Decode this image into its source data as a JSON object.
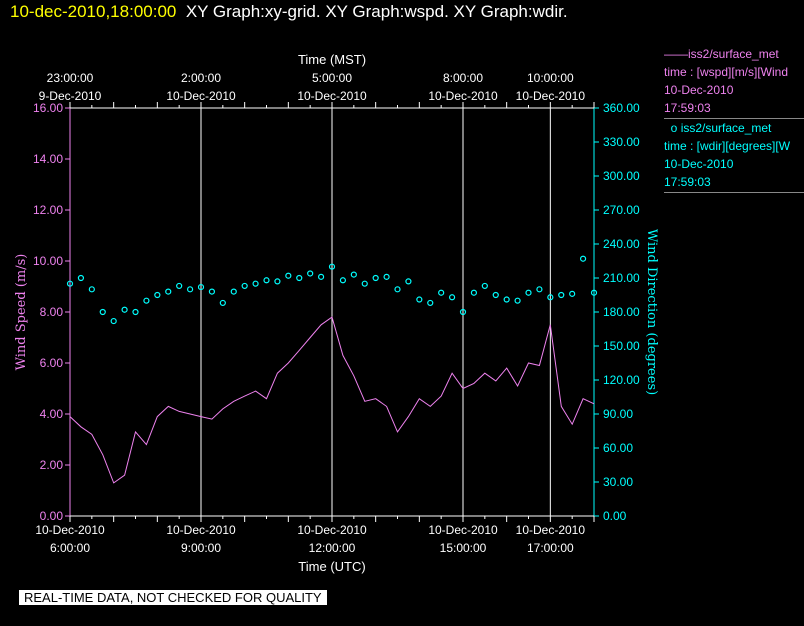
{
  "header": {
    "timestamp": "10-dec-2010,18:00:00",
    "graphs": "XY Graph:xy-grid.  XY Graph:wspd.  XY Graph:wdir."
  },
  "legend": [
    {
      "line1": "iss2/surface_met",
      "line2": "time : [wspd][m/s][Wind",
      "line3": "10-Dec-2010",
      "line4": "17:59:03"
    },
    {
      "line1": "iss2/surface_met",
      "line2": "time : [wdir][degrees][W",
      "line3": "10-Dec-2010",
      "line4": "17:59:03"
    }
  ],
  "footer": "REAL-TIME DATA, NOT CHECKED FOR QUALITY",
  "chart_data": {
    "type": "line",
    "colors": {
      "wspd": "#ee82ee",
      "wdir": "#00ffff",
      "grid": "#ffffff",
      "background": "#000000"
    },
    "x_bottom": {
      "label": "Time (UTC)",
      "ticks": [
        {
          "hour": 6,
          "line1": "10-Dec-2010",
          "line2": "6:00:00"
        },
        {
          "hour": 9,
          "line1": "10-Dec-2010",
          "line2": "9:00:00"
        },
        {
          "hour": 12,
          "line1": "10-Dec-2010",
          "line2": "12:00:00"
        },
        {
          "hour": 15,
          "line1": "10-Dec-2010",
          "line2": "15:00:00"
        },
        {
          "hour": 17,
          "line1": "10-Dec-2010",
          "line2": "17:00:00"
        }
      ]
    },
    "x_top": {
      "label": "Time (MST)",
      "ticks": [
        {
          "hour": 6,
          "line1": "23:00:00",
          "line2": "9-Dec-2010"
        },
        {
          "hour": 9,
          "line1": "2:00:00",
          "line2": "10-Dec-2010"
        },
        {
          "hour": 12,
          "line1": "5:00:00",
          "line2": "10-Dec-2010"
        },
        {
          "hour": 15,
          "line1": "8:00:00",
          "line2": "10-Dec-2010"
        },
        {
          "hour": 17,
          "line1": "10:00:00",
          "line2": "10-Dec-2010"
        }
      ]
    },
    "xlim_hours_utc": [
      6,
      18
    ],
    "y_left": {
      "label": "Wind Speed (m/s)",
      "lim": [
        0,
        16
      ],
      "ticks": [
        "0.00",
        "2.00",
        "4.00",
        "6.00",
        "8.00",
        "10.00",
        "12.00",
        "14.00",
        "16.00"
      ]
    },
    "y_right": {
      "label": "Wind Direction (degrees)",
      "lim": [
        0,
        360
      ],
      "ticks": [
        "0.00",
        "30.00",
        "60.00",
        "90.00",
        "120.00",
        "150.00",
        "180.00",
        "210.00",
        "240.00",
        "270.00",
        "300.00",
        "330.00",
        "360.00"
      ]
    },
    "grid": true,
    "series": [
      {
        "key": "wspd",
        "style": "line",
        "hours_utc": [
          6.0,
          6.25,
          6.5,
          6.75,
          7.0,
          7.25,
          7.5,
          7.75,
          8.0,
          8.25,
          8.5,
          8.75,
          9.0,
          9.25,
          9.5,
          9.75,
          10.0,
          10.25,
          10.5,
          10.75,
          11.0,
          11.25,
          11.5,
          11.75,
          12.0,
          12.25,
          12.5,
          12.75,
          13.0,
          13.25,
          13.5,
          13.75,
          14.0,
          14.25,
          14.5,
          14.75,
          15.0,
          15.25,
          15.5,
          15.75,
          16.0,
          16.25,
          16.5,
          16.75,
          17.0,
          17.25,
          17.5,
          17.75,
          18.0
        ],
        "values": [
          3.9,
          3.5,
          3.2,
          2.4,
          1.3,
          1.6,
          3.3,
          2.8,
          3.9,
          4.3,
          4.1,
          4.0,
          3.9,
          3.8,
          4.2,
          4.5,
          4.7,
          4.9,
          4.6,
          5.6,
          6.0,
          6.5,
          7.0,
          7.5,
          7.8,
          6.3,
          5.5,
          4.5,
          4.6,
          4.3,
          3.3,
          3.9,
          4.6,
          4.3,
          4.7,
          5.6,
          5.0,
          5.2,
          5.6,
          5.3,
          5.8,
          5.1,
          6.0,
          5.9,
          7.5,
          4.3,
          3.6,
          4.6,
          4.4
        ]
      },
      {
        "key": "wdir",
        "style": "circles",
        "hours_utc": [
          6.0,
          6.25,
          6.5,
          6.75,
          7.0,
          7.25,
          7.5,
          7.75,
          8.0,
          8.25,
          8.5,
          8.75,
          9.0,
          9.25,
          9.5,
          9.75,
          10.0,
          10.25,
          10.5,
          10.75,
          11.0,
          11.25,
          11.5,
          11.75,
          12.0,
          12.25,
          12.5,
          12.75,
          13.0,
          13.25,
          13.5,
          13.75,
          14.0,
          14.25,
          14.5,
          14.75,
          15.0,
          15.25,
          15.5,
          15.75,
          16.0,
          16.25,
          16.5,
          16.75,
          17.0,
          17.25,
          17.5,
          17.75,
          18.0
        ],
        "values": [
          205,
          210,
          200,
          180,
          172,
          182,
          180,
          190,
          195,
          198,
          203,
          200,
          202,
          198,
          188,
          198,
          203,
          205,
          208,
          207,
          212,
          210,
          214,
          211,
          220,
          208,
          213,
          205,
          210,
          211,
          200,
          207,
          191,
          188,
          197,
          193,
          180,
          197,
          203,
          195,
          191,
          190,
          197,
          200,
          193,
          195,
          196,
          227,
          197
        ]
      }
    ]
  }
}
